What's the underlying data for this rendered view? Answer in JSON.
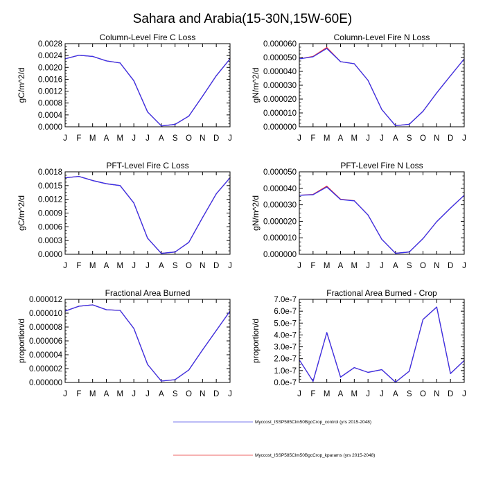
{
  "title": "Sahara and Arabia(15-30N,15W-60E)",
  "months": [
    "J",
    "F",
    "M",
    "A",
    "M",
    "J",
    "J",
    "A",
    "S",
    "O",
    "N",
    "D",
    "J"
  ],
  "legend": [
    {
      "label": "Myccost_ISSP585Clm50BgcCrop_control (yrs 2015-2048)",
      "color": "#7777ee"
    },
    {
      "label": "Myccost_ISSP585Clm50BgcCrop_kparams (yrs 2015-2048)",
      "color": "#ee6666"
    }
  ],
  "chart_data": [
    {
      "type": "line",
      "title": "Column-Level Fire C Loss",
      "xlabel": "",
      "ylabel": "gC/m^2/d",
      "categories": [
        "J",
        "F",
        "M",
        "A",
        "M",
        "J",
        "J",
        "A",
        "S",
        "O",
        "N",
        "D",
        "J"
      ],
      "ylim": [
        0,
        0.0028
      ],
      "yticks": [
        0,
        0.0004,
        0.0008,
        0.0012,
        0.0016,
        0.002,
        0.0024,
        0.0028
      ],
      "yticklabels": [
        "0.0000",
        "0.0004",
        "0.0008",
        "0.0012",
        "0.0016",
        "0.0020",
        "0.0024",
        "0.0028"
      ],
      "series": [
        {
          "name": "control",
          "color": "#3333ee",
          "values": [
            0.00229,
            0.00241,
            0.00237,
            0.00222,
            0.00215,
            0.00155,
            0.0005,
            3e-05,
            8e-05,
            0.00036,
            0.00103,
            0.00172,
            0.00229
          ]
        },
        {
          "name": "kparams",
          "color": "#ee3333",
          "values": [
            0.00229,
            0.00241,
            0.00237,
            0.00222,
            0.00215,
            0.00155,
            0.0005,
            3e-05,
            8e-05,
            0.00036,
            0.00103,
            0.00172,
            0.00229
          ]
        }
      ]
    },
    {
      "type": "line",
      "title": "Column-Level Fire N Loss",
      "xlabel": "",
      "ylabel": "gN/m^2/d",
      "categories": [
        "J",
        "F",
        "M",
        "A",
        "M",
        "J",
        "J",
        "A",
        "S",
        "O",
        "N",
        "D",
        "J"
      ],
      "ylim": [
        0,
        6e-05
      ],
      "yticks": [
        0,
        1e-05,
        2e-05,
        3e-05,
        4e-05,
        5e-05,
        6e-05
      ],
      "yticklabels": [
        "0.000000",
        "0.000010",
        "0.000020",
        "0.000030",
        "0.000040",
        "0.000050",
        "0.000060"
      ],
      "series": [
        {
          "name": "control",
          "color": "#3333ee",
          "values": [
            4.9e-05,
            5.05e-05,
            5.65e-05,
            4.7e-05,
            4.55e-05,
            3.35e-05,
            1.25e-05,
            8e-07,
            1.8e-06,
            1.12e-05,
            2.45e-05,
            3.68e-05,
            4.9e-05
          ]
        },
        {
          "name": "kparams",
          "color": "#ee3333",
          "values": [
            4.9e-05,
            5.08e-05,
            5.72e-05,
            4.7e-05,
            4.55e-05,
            3.35e-05,
            1.25e-05,
            8e-07,
            1.8e-06,
            1.12e-05,
            2.45e-05,
            3.68e-05,
            4.9e-05
          ]
        }
      ]
    },
    {
      "type": "line",
      "title": "PFT-Level Fire C Loss",
      "xlabel": "",
      "ylabel": "gC/m^2/d",
      "categories": [
        "J",
        "F",
        "M",
        "A",
        "M",
        "J",
        "J",
        "A",
        "S",
        "O",
        "N",
        "D",
        "J"
      ],
      "ylim": [
        0,
        0.0018
      ],
      "yticks": [
        0,
        0.0003,
        0.0006,
        0.0009,
        0.0012,
        0.0015,
        0.0018
      ],
      "yticklabels": [
        "0.0000",
        "0.0003",
        "0.0006",
        "0.0009",
        "0.0012",
        "0.0015",
        "0.0018"
      ],
      "series": [
        {
          "name": "control",
          "color": "#3333ee",
          "values": [
            0.00167,
            0.0017,
            0.00161,
            0.00154,
            0.0015,
            0.00112,
            0.00035,
            2e-05,
            5e-05,
            0.00026,
            0.0008,
            0.00132,
            0.00167
          ]
        },
        {
          "name": "kparams",
          "color": "#ee3333",
          "values": [
            0.00167,
            0.0017,
            0.00161,
            0.00154,
            0.0015,
            0.00112,
            0.00035,
            2e-05,
            5e-05,
            0.00026,
            0.0008,
            0.00132,
            0.00167
          ]
        }
      ]
    },
    {
      "type": "line",
      "title": "PFT-Level Fire N Loss",
      "xlabel": "",
      "ylabel": "gN/m^2/d",
      "categories": [
        "J",
        "F",
        "M",
        "A",
        "M",
        "J",
        "J",
        "A",
        "S",
        "O",
        "N",
        "D",
        "J"
      ],
      "ylim": [
        0,
        5e-05
      ],
      "yticks": [
        0,
        1e-05,
        2e-05,
        3e-05,
        4e-05,
        5e-05
      ],
      "yticklabels": [
        "0.000000",
        "0.000010",
        "0.000020",
        "0.000030",
        "0.000040",
        "0.000050"
      ],
      "series": [
        {
          "name": "control",
          "color": "#3333ee",
          "values": [
            3.58e-05,
            3.61e-05,
            4.08e-05,
            3.32e-05,
            3.24e-05,
            2.38e-05,
            9.1e-06,
            6e-07,
            1.4e-06,
            9.5e-06,
            1.98e-05,
            2.8e-05,
            3.58e-05
          ]
        },
        {
          "name": "kparams",
          "color": "#ee3333",
          "values": [
            3.58e-05,
            3.63e-05,
            4.13e-05,
            3.34e-05,
            3.25e-05,
            2.38e-05,
            9.1e-06,
            6e-07,
            1.4e-06,
            9.5e-06,
            1.98e-05,
            2.8e-05,
            3.58e-05
          ]
        }
      ]
    },
    {
      "type": "line",
      "title": "Fractional Area Burned",
      "xlabel": "",
      "ylabel": "proportion/d",
      "categories": [
        "J",
        "F",
        "M",
        "A",
        "M",
        "J",
        "J",
        "A",
        "S",
        "O",
        "N",
        "D",
        "J"
      ],
      "ylim": [
        0,
        1.2e-05
      ],
      "yticks": [
        0,
        2e-06,
        4e-06,
        6e-06,
        8e-06,
        1e-05,
        1.2e-05
      ],
      "yticklabels": [
        "0.000000",
        "0.000002",
        "0.000004",
        "0.000006",
        "0.000008",
        "0.000010",
        "0.000012"
      ],
      "series": [
        {
          "name": "control",
          "color": "#3333ee",
          "values": [
            1.03e-05,
            1.1e-05,
            1.12e-05,
            1.05e-05,
            1.04e-05,
            7.8e-06,
            2.6e-06,
            2e-07,
            4e-07,
            1.8e-06,
            4.7e-06,
            7.5e-06,
            1.03e-05
          ]
        },
        {
          "name": "kparams",
          "color": "#ee3333",
          "values": [
            1.03e-05,
            1.1e-05,
            1.12e-05,
            1.05e-05,
            1.04e-05,
            7.8e-06,
            2.6e-06,
            2e-07,
            4e-07,
            1.8e-06,
            4.7e-06,
            7.5e-06,
            1.03e-05
          ]
        }
      ]
    },
    {
      "type": "line",
      "title": "Fractional Area Burned - Crop",
      "xlabel": "",
      "ylabel": "proportion/d",
      "categories": [
        "J",
        "F",
        "M",
        "A",
        "M",
        "J",
        "J",
        "A",
        "S",
        "O",
        "N",
        "D",
        "J"
      ],
      "ylim": [
        0,
        7e-07
      ],
      "yticks": [
        0,
        1e-07,
        2e-07,
        3e-07,
        4e-07,
        5e-07,
        6e-07,
        7e-07
      ],
      "yticklabels": [
        "0.0e-7",
        "1.0e-7",
        "2.0e-7",
        "3.0e-7",
        "4.0e-7",
        "5.0e-7",
        "6.0e-7",
        "7.0e-7"
      ],
      "series": [
        {
          "name": "control",
          "color": "#3333ee",
          "values": [
            1.9e-07,
            1e-08,
            4.2e-07,
            4.5e-08,
            1.25e-07,
            8.5e-08,
            1.08e-07,
            2e-09,
            9.5e-08,
            5.3e-07,
            6.35e-07,
            7.5e-08,
            1.85e-07
          ]
        },
        {
          "name": "kparams",
          "color": "#ee3333",
          "values": [
            1.9e-07,
            1e-08,
            4.2e-07,
            4.5e-08,
            1.25e-07,
            8.5e-08,
            1.08e-07,
            2e-09,
            9.5e-08,
            5.3e-07,
            6.35e-07,
            7.5e-08,
            1.85e-07
          ]
        }
      ]
    }
  ]
}
